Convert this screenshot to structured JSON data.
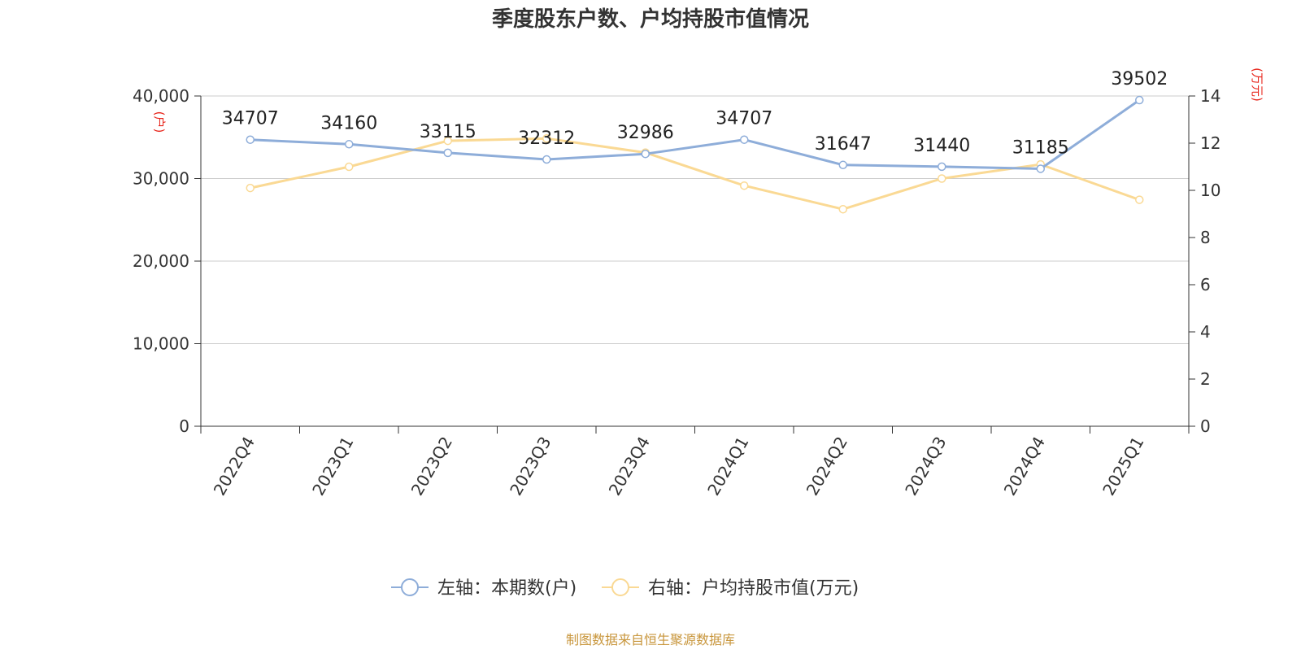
{
  "chart_data": {
    "type": "line",
    "title": "季度股东户数、户均持股市值情况",
    "categories": [
      "2022Q4",
      "2023Q1",
      "2023Q2",
      "2023Q3",
      "2023Q4",
      "2024Q1",
      "2024Q2",
      "2024Q3",
      "2024Q4",
      "2025Q1"
    ],
    "left_axis": {
      "unit_label": "(户)",
      "ylim": [
        0,
        40000
      ],
      "ticks": [
        "0",
        "10,000",
        "20,000",
        "30,000",
        "40,000"
      ]
    },
    "right_axis": {
      "unit_label": "(万元)",
      "ylim": [
        0,
        14
      ],
      "ticks": [
        "0",
        "2",
        "4",
        "6",
        "8",
        "10",
        "12",
        "14"
      ]
    },
    "series": [
      {
        "name": "左轴：本期数(户)",
        "axis": "left",
        "color": "#8eadd9",
        "values": [
          34707,
          34160,
          33115,
          32312,
          32986,
          34707,
          31647,
          31440,
          31185,
          39502
        ],
        "data_labels": [
          "34707",
          "34160",
          "33115",
          "32312",
          "32986",
          "34707",
          "31647",
          "31440",
          "31185",
          "39502"
        ]
      },
      {
        "name": "右轴：户均持股市值(万元)",
        "axis": "right",
        "color": "#fad994",
        "values": [
          10.1,
          11.0,
          12.1,
          12.2,
          11.6,
          10.2,
          9.2,
          10.5,
          11.1,
          9.6
        ]
      }
    ],
    "grid": true,
    "legend_position": "bottom-center"
  },
  "footer": {
    "source": "制图数据来自恒生聚源数据库",
    "color": "#c8963c"
  }
}
